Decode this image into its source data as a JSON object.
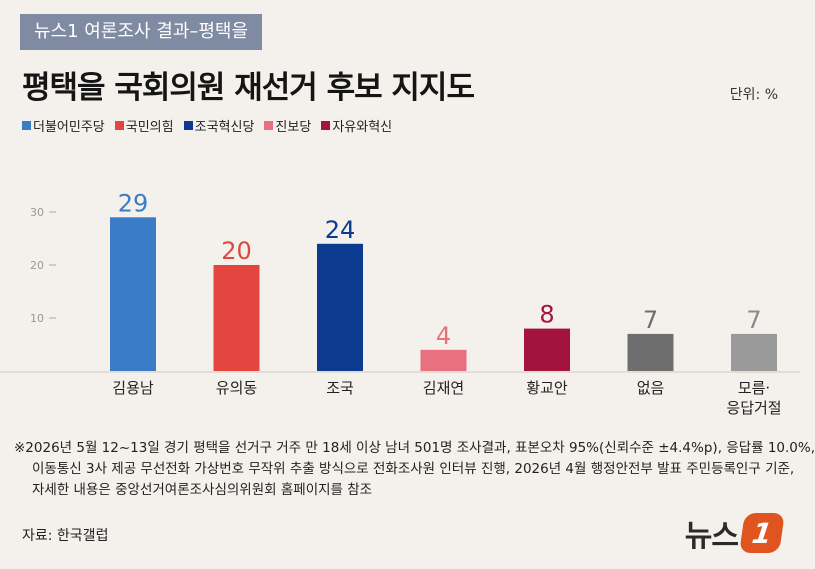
{
  "tag": "뉴스1 여론조사 결과–평택을",
  "title": "평택을 국회의원 재선거 후보 지지도",
  "unit": "단위: %",
  "legend": [
    {
      "label": "더불어민주당",
      "color": "#3b7cc7"
    },
    {
      "label": "국민의힘",
      "color": "#e4463f"
    },
    {
      "label": "조국혁신당",
      "color": "#0b3a8f"
    },
    {
      "label": "진보당",
      "color": "#e8707f"
    },
    {
      "label": "자유와혁신",
      "color": "#a4133c"
    }
  ],
  "chart_data": {
    "type": "bar",
    "title": "평택을 국회의원 재선거 후보 지지도",
    "categories": [
      "김용남",
      "유의동",
      "조국",
      "김재연",
      "황교안",
      "없음",
      "모름·\n응답거절"
    ],
    "values": [
      29,
      20,
      24,
      4,
      8,
      7,
      7
    ],
    "colors": [
      "#3b7cc7",
      "#e4463f",
      "#0b3a8f",
      "#e8707f",
      "#a4133c",
      "#6e6e6e",
      "#9a9a9a"
    ],
    "label_colors": [
      "#3b7cc7",
      "#e4463f",
      "#0b3a8f",
      "#e8707f",
      "#a4133c",
      "#6e6e6e",
      "#8a8a8a"
    ],
    "yticks": [
      10,
      20,
      30
    ],
    "ylim": [
      0,
      30
    ],
    "xlabel": "",
    "ylabel": "",
    "grid": false
  },
  "notes": [
    "※2026년 5월 12~13일 경기 평택을 선거구 거주 만 18세 이상 남녀 501명 조사결과, 표본오차 95%(신뢰수준 ±4.4%p), 응답률 10.0%,",
    "이동통신 3사 제공 무선전화 가상번호 무작위 추출 방식으로 전화조사원 인터뷰 진행, 2026년 4월 행정안전부 발표 주민등록인구 기준,",
    "자세한 내용은 중앙선거여론조사심의위원회 홈페이지를 참조"
  ],
  "source": "자료: 한국갤럽",
  "logo": {
    "text": "뉴스",
    "mark": "1"
  }
}
